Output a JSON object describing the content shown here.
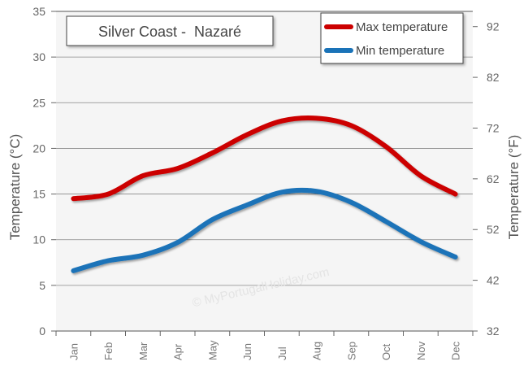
{
  "chart_data": {
    "type": "line",
    "title": "Silver Coast -  Nazaré",
    "categories": [
      "Jan",
      "Feb",
      "Mar",
      "Apr",
      "May",
      "Jun",
      "Jul",
      "Aug",
      "Sep",
      "Oct",
      "Nov",
      "Dec"
    ],
    "series": [
      {
        "name": "Max temperature",
        "color": "#cc0000",
        "values": [
          14.5,
          15.0,
          17.0,
          17.8,
          19.5,
          21.5,
          23.0,
          23.3,
          22.5,
          20.2,
          17.0,
          15.0
        ]
      },
      {
        "name": "Min temperature",
        "color": "#1a73b8",
        "values": [
          6.6,
          7.7,
          8.3,
          9.7,
          12.2,
          13.8,
          15.2,
          15.3,
          14.1,
          12.0,
          9.8,
          8.1
        ]
      }
    ],
    "ylabel": "Temperature (°C)",
    "y2label": "Temperature (°F)",
    "ylim": [
      0,
      35
    ],
    "yticks": [
      "0",
      "5",
      "10",
      "15",
      "20",
      "25",
      "30",
      "35"
    ],
    "y2lim": [
      32,
      95
    ],
    "y2ticks": [
      "32",
      "42",
      "52",
      "62",
      "72",
      "82",
      "92"
    ],
    "grid": true,
    "legend_position": "top-right",
    "watermark": "© MyPortugalHoliday.com"
  }
}
